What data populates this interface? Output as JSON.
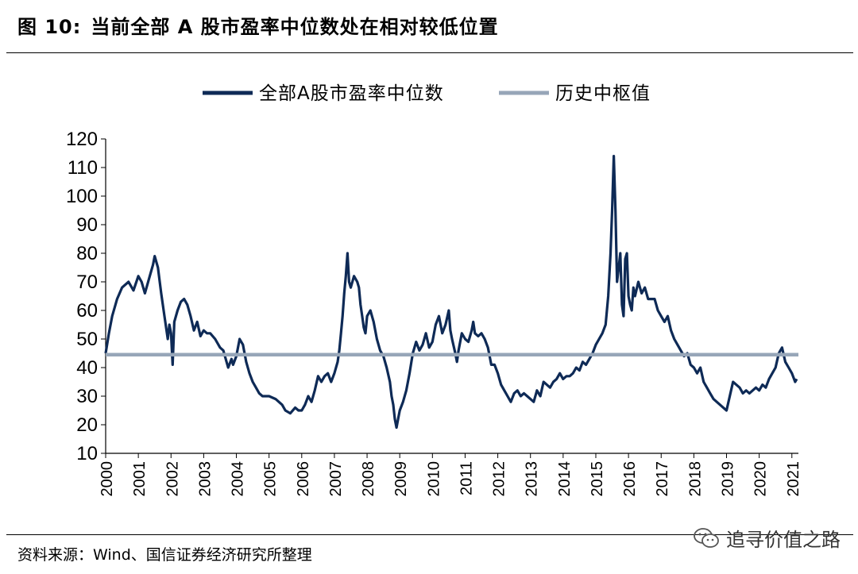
{
  "figure": {
    "label": "图 10:",
    "title": "当前全部 A 股市盈率中位数处在相对较低位置"
  },
  "source": "资料来源：Wind、国信证券经济研究所整理",
  "watermark": {
    "text": "追寻价值之路",
    "icon": "wechat-icon"
  },
  "chart_data": {
    "type": "line",
    "title": "",
    "xlabel": "",
    "ylabel": "",
    "ylim": [
      10,
      120
    ],
    "yticks": [
      10,
      20,
      30,
      40,
      50,
      60,
      70,
      80,
      90,
      100,
      110,
      120
    ],
    "xlim": [
      2000,
      2021.2
    ],
    "xticks": [
      "2000",
      "2001",
      "2002",
      "2003",
      "2004",
      "2005",
      "2006",
      "2007",
      "2008",
      "2009",
      "2010",
      "2011",
      "2012",
      "2013",
      "2014",
      "2015",
      "2016",
      "2017",
      "2018",
      "2019",
      "2020",
      "2021"
    ],
    "grid": false,
    "legend_position": "top-center",
    "series": [
      {
        "name": "全部A股市盈率中位数",
        "color": "#0e2a56",
        "x": [
          2000.0,
          2000.1,
          2000.2,
          2000.35,
          2000.5,
          2000.7,
          2000.85,
          2001.0,
          2001.1,
          2001.2,
          2001.35,
          2001.45,
          2001.5,
          2001.6,
          2001.7,
          2001.8,
          2001.9,
          2001.95,
          2002.0,
          2002.05,
          2002.1,
          2002.2,
          2002.3,
          2002.4,
          2002.5,
          2002.6,
          2002.7,
          2002.8,
          2002.9,
          2003.0,
          2003.1,
          2003.2,
          2003.35,
          2003.5,
          2003.6,
          2003.75,
          2003.85,
          2003.9,
          2004.0,
          2004.1,
          2004.2,
          2004.3,
          2004.4,
          2004.5,
          2004.6,
          2004.7,
          2004.8,
          2005.0,
          2005.2,
          2005.4,
          2005.5,
          2005.65,
          2005.8,
          2005.9,
          2006.0,
          2006.1,
          2006.2,
          2006.3,
          2006.4,
          2006.5,
          2006.6,
          2006.7,
          2006.8,
          2006.9,
          2007.0,
          2007.1,
          2007.15,
          2007.2,
          2007.25,
          2007.3,
          2007.35,
          2007.4,
          2007.45,
          2007.5,
          2007.6,
          2007.7,
          2007.75,
          2007.8,
          2007.85,
          2007.9,
          2007.95,
          2008.0,
          2008.1,
          2008.2,
          2008.3,
          2008.4,
          2008.5,
          2008.6,
          2008.7,
          2008.75,
          2008.8,
          2008.85,
          2008.9,
          2008.95,
          2009.0,
          2009.1,
          2009.2,
          2009.3,
          2009.4,
          2009.5,
          2009.6,
          2009.7,
          2009.8,
          2009.9,
          2010.0,
          2010.1,
          2010.2,
          2010.3,
          2010.4,
          2010.5,
          2010.55,
          2010.6,
          2010.7,
          2010.75,
          2010.8,
          2010.9,
          2011.0,
          2011.1,
          2011.2,
          2011.25,
          2011.3,
          2011.4,
          2011.5,
          2011.6,
          2011.7,
          2011.75,
          2011.8,
          2011.9,
          2012.0,
          2012.1,
          2012.2,
          2012.3,
          2012.4,
          2012.5,
          2012.6,
          2012.7,
          2012.8,
          2012.9,
          2013.0,
          2013.1,
          2013.2,
          2013.3,
          2013.4,
          2013.5,
          2013.6,
          2013.7,
          2013.8,
          2013.9,
          2014.0,
          2014.1,
          2014.2,
          2014.3,
          2014.4,
          2014.5,
          2014.6,
          2014.7,
          2014.8,
          2014.9,
          2015.0,
          2015.1,
          2015.2,
          2015.3,
          2015.38,
          2015.45,
          2015.5,
          2015.55,
          2015.6,
          2015.65,
          2015.7,
          2015.75,
          2015.8,
          2015.85,
          2015.9,
          2015.95,
          2016.0,
          2016.05,
          2016.1,
          2016.15,
          2016.2,
          2016.3,
          2016.4,
          2016.5,
          2016.6,
          2016.7,
          2016.8,
          2016.9,
          2017.0,
          2017.1,
          2017.2,
          2017.3,
          2017.4,
          2017.5,
          2017.6,
          2017.7,
          2017.8,
          2017.9,
          2018.0,
          2018.1,
          2018.2,
          2018.3,
          2018.4,
          2018.5,
          2018.6,
          2018.7,
          2018.8,
          2018.9,
          2019.0,
          2019.1,
          2019.2,
          2019.3,
          2019.4,
          2019.5,
          2019.6,
          2019.7,
          2019.8,
          2019.9,
          2020.0,
          2020.1,
          2020.2,
          2020.3,
          2020.4,
          2020.5,
          2020.6,
          2020.7,
          2020.8,
          2020.9,
          2021.0,
          2021.1,
          2021.15
        ],
        "y": [
          45,
          52,
          58,
          64,
          68,
          70,
          67,
          72,
          70,
          66,
          72,
          76,
          79,
          75,
          66,
          58,
          50,
          55,
          52,
          41,
          56,
          60,
          63,
          64,
          62,
          58,
          53,
          56,
          51,
          53,
          52,
          52,
          50,
          47,
          46,
          40,
          43,
          41,
          44,
          50,
          48,
          42,
          38,
          35,
          33,
          31,
          30,
          30,
          29,
          27,
          25,
          24,
          26,
          25,
          25,
          27,
          30,
          28,
          32,
          37,
          35,
          37,
          38,
          35,
          38,
          42,
          46,
          52,
          58,
          66,
          72,
          80,
          70,
          68,
          72,
          70,
          68,
          62,
          58,
          54,
          52,
          58,
          60,
          56,
          50,
          46,
          44,
          40,
          35,
          30,
          27,
          22,
          19,
          22,
          25,
          28,
          32,
          38,
          45,
          49,
          46,
          48,
          52,
          47,
          49,
          55,
          58,
          52,
          55,
          60,
          53,
          50,
          45,
          42,
          46,
          52,
          50,
          49,
          53,
          56,
          52,
          51,
          52,
          50,
          47,
          44,
          41,
          41,
          38,
          34,
          32,
          30,
          28,
          31,
          32,
          30,
          31,
          30,
          29,
          28,
          32,
          30,
          35,
          34,
          33,
          35,
          36,
          38,
          36,
          37,
          37,
          38,
          40,
          39,
          42,
          41,
          43,
          45,
          48,
          50,
          52,
          55,
          65,
          80,
          95,
          114,
          95,
          70,
          75,
          80,
          62,
          58,
          78,
          80,
          65,
          62,
          60,
          68,
          65,
          70,
          66,
          68,
          64,
          64,
          64,
          60,
          58,
          56,
          58,
          53,
          50,
          48,
          46,
          44,
          45,
          41,
          40,
          38,
          40,
          35,
          33,
          31,
          29,
          28,
          27,
          26,
          25,
          30,
          35,
          34,
          33,
          31,
          32,
          31,
          32,
          33,
          32,
          34,
          33,
          36,
          38,
          40,
          45,
          47,
          42,
          40,
          38,
          35,
          36
        ]
      },
      {
        "name": "历史中枢值",
        "color": "#97a6b8",
        "x": [
          2000.0,
          2021.2
        ],
        "y": [
          44.5,
          44.5
        ]
      }
    ]
  }
}
